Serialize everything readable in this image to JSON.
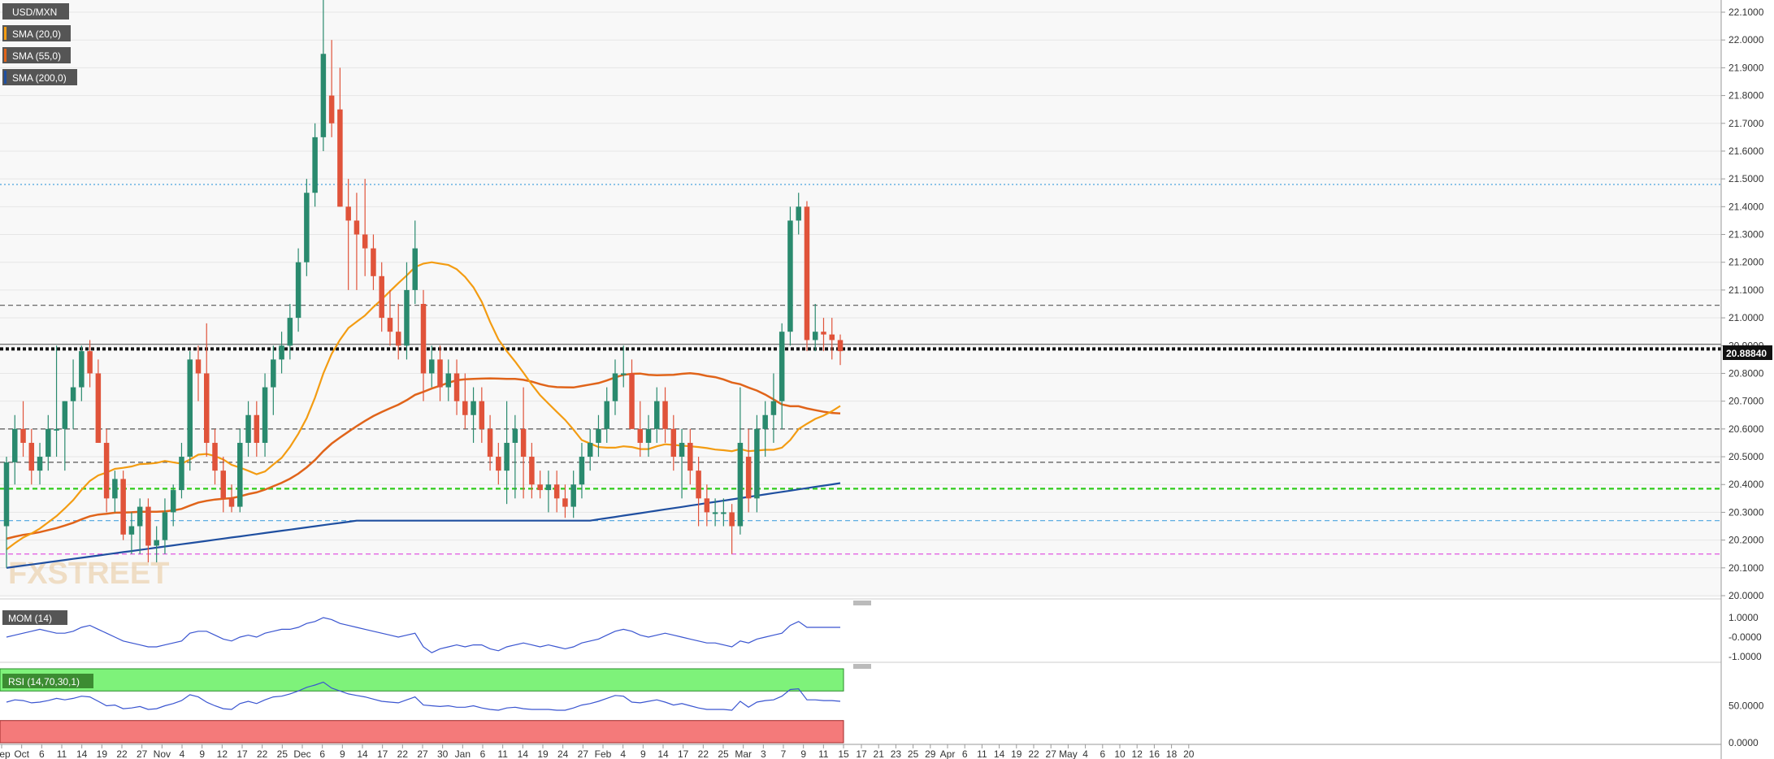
{
  "chart_data": {
    "type": "candlestick",
    "title": "USD/MXN",
    "indicators": [
      "SMA (20,0)",
      "SMA (55,0)",
      "SMA (200,0)"
    ],
    "last_price": "20.88840",
    "watermark": "FXSTREET",
    "y_range": [
      20.0,
      22.15
    ],
    "y_ticks": [
      "22.1000",
      "22.0000",
      "21.9000",
      "21.8000",
      "21.7000",
      "21.6000",
      "21.5000",
      "21.4000",
      "21.3000",
      "21.2000",
      "21.1000",
      "21.0000",
      "20.9000",
      "20.8000",
      "20.7000",
      "20.6000",
      "20.5000",
      "20.4000",
      "20.3000",
      "20.2000",
      "20.1000",
      "20.0000"
    ],
    "x_labels": [
      "Sep",
      "Oct",
      "6",
      "11",
      "14",
      "19",
      "22",
      "27",
      "Nov",
      "4",
      "9",
      "12",
      "17",
      "22",
      "25",
      "Dec",
      "6",
      "9",
      "14",
      "17",
      "22",
      "27",
      "30",
      "Jan",
      "6",
      "11",
      "14",
      "19",
      "24",
      "27",
      "Feb",
      "4",
      "9",
      "14",
      "17",
      "22",
      "25",
      "Mar",
      "3",
      "7",
      "9",
      "11",
      "15",
      "17",
      "21",
      "23",
      "25",
      "29",
      "Apr",
      "6",
      "11",
      "14",
      "19",
      "22",
      "27",
      "May",
      "4",
      "6",
      "10",
      "12",
      "16",
      "18",
      "20"
    ],
    "horizontal_levels": [
      {
        "value": 21.48,
        "color": "#4aa3df",
        "style": "dotted"
      },
      {
        "value": 21.045,
        "color": "#555555",
        "style": "dashed"
      },
      {
        "value": 20.888,
        "color": "#111111",
        "style": "thick-dotted"
      },
      {
        "value": 20.6,
        "color": "#555555",
        "style": "dashed"
      },
      {
        "value": 20.48,
        "color": "#555555",
        "style": "dashed"
      },
      {
        "value": 20.385,
        "color": "#2ecc1a",
        "style": "dashed"
      },
      {
        "value": 20.27,
        "color": "#4aa3df",
        "style": "dashed"
      },
      {
        "value": 20.15,
        "color": "#e055e0",
        "style": "dashed"
      }
    ],
    "candles": [
      [
        20.25,
        20.5,
        20.1,
        20.48
      ],
      [
        20.48,
        20.65,
        20.4,
        20.6
      ],
      [
        20.6,
        20.7,
        20.5,
        20.55
      ],
      [
        20.55,
        20.6,
        20.4,
        20.45
      ],
      [
        20.45,
        20.55,
        20.4,
        20.5
      ],
      [
        20.5,
        20.65,
        20.45,
        20.6
      ],
      [
        20.6,
        20.9,
        20.5,
        20.6
      ],
      [
        20.6,
        20.7,
        20.45,
        20.7
      ],
      [
        20.7,
        20.85,
        20.6,
        20.75
      ],
      [
        20.75,
        20.9,
        20.7,
        20.88
      ],
      [
        20.88,
        20.92,
        20.75,
        20.8
      ],
      [
        20.8,
        20.85,
        20.55,
        20.55
      ],
      [
        20.55,
        20.6,
        20.3,
        20.35
      ],
      [
        20.35,
        20.45,
        20.3,
        20.42
      ],
      [
        20.42,
        20.45,
        20.2,
        20.22
      ],
      [
        20.22,
        20.3,
        20.15,
        20.25
      ],
      [
        20.25,
        20.35,
        20.15,
        20.32
      ],
      [
        20.32,
        20.35,
        20.12,
        20.18
      ],
      [
        20.18,
        20.25,
        20.12,
        20.2
      ],
      [
        20.2,
        20.35,
        20.15,
        20.3
      ],
      [
        20.3,
        20.4,
        20.25,
        20.38
      ],
      [
        20.38,
        20.55,
        20.35,
        20.5
      ],
      [
        20.5,
        20.88,
        20.45,
        20.85
      ],
      [
        20.85,
        20.9,
        20.7,
        20.8
      ],
      [
        20.8,
        20.98,
        20.5,
        20.55
      ],
      [
        20.55,
        20.6,
        20.4,
        20.45
      ],
      [
        20.45,
        20.5,
        20.3,
        20.35
      ],
      [
        20.35,
        20.4,
        20.3,
        20.32
      ],
      [
        20.32,
        20.6,
        20.3,
        20.55
      ],
      [
        20.55,
        20.7,
        20.5,
        20.65
      ],
      [
        20.65,
        20.7,
        20.5,
        20.55
      ],
      [
        20.55,
        20.8,
        20.5,
        20.75
      ],
      [
        20.75,
        20.9,
        20.65,
        20.85
      ],
      [
        20.85,
        20.95,
        20.8,
        20.9
      ],
      [
        20.9,
        21.05,
        20.85,
        21.0
      ],
      [
        21.0,
        21.25,
        20.95,
        21.2
      ],
      [
        21.2,
        21.5,
        21.15,
        21.45
      ],
      [
        21.45,
        21.7,
        21.4,
        21.65
      ],
      [
        21.65,
        22.15,
        21.6,
        21.95
      ],
      [
        21.8,
        22.0,
        21.65,
        21.7
      ],
      [
        21.75,
        21.9,
        21.4,
        21.4
      ],
      [
        21.4,
        21.5,
        21.1,
        21.35
      ],
      [
        21.35,
        21.45,
        21.1,
        21.3
      ],
      [
        21.3,
        21.5,
        21.15,
        21.25
      ],
      [
        21.25,
        21.3,
        21.1,
        21.15
      ],
      [
        21.15,
        21.2,
        20.95,
        21.0
      ],
      [
        21.0,
        21.1,
        20.9,
        20.95
      ],
      [
        20.95,
        21.05,
        20.85,
        20.9
      ],
      [
        20.9,
        21.2,
        20.85,
        21.1
      ],
      [
        21.1,
        21.35,
        21.05,
        21.25
      ],
      [
        21.05,
        21.1,
        20.7,
        20.8
      ],
      [
        20.8,
        20.9,
        20.75,
        20.85
      ],
      [
        20.85,
        20.9,
        20.7,
        20.75
      ],
      [
        20.75,
        20.85,
        20.7,
        20.8
      ],
      [
        20.8,
        20.85,
        20.65,
        20.7
      ],
      [
        20.7,
        20.8,
        20.6,
        20.65
      ],
      [
        20.65,
        20.75,
        20.55,
        20.7
      ],
      [
        20.7,
        20.75,
        20.55,
        20.6
      ],
      [
        20.6,
        20.65,
        20.45,
        20.5
      ],
      [
        20.5,
        20.55,
        20.4,
        20.45
      ],
      [
        20.45,
        20.7,
        20.33,
        20.55
      ],
      [
        20.55,
        20.65,
        20.35,
        20.6
      ],
      [
        20.6,
        20.75,
        20.35,
        20.5
      ],
      [
        20.5,
        20.55,
        20.35,
        20.4
      ],
      [
        20.4,
        20.45,
        20.35,
        20.38
      ],
      [
        20.38,
        20.45,
        20.3,
        20.4
      ],
      [
        20.4,
        20.45,
        20.3,
        20.35
      ],
      [
        20.35,
        20.4,
        20.28,
        20.32
      ],
      [
        20.32,
        20.45,
        20.28,
        20.4
      ],
      [
        20.4,
        20.55,
        20.35,
        20.5
      ],
      [
        20.5,
        20.6,
        20.45,
        20.55
      ],
      [
        20.55,
        20.65,
        20.5,
        20.6
      ],
      [
        20.6,
        20.75,
        20.55,
        20.7
      ],
      [
        20.7,
        20.85,
        20.65,
        20.8
      ],
      [
        20.8,
        20.9,
        20.75,
        20.8
      ],
      [
        20.8,
        20.85,
        20.6,
        20.6
      ],
      [
        20.6,
        20.7,
        20.5,
        20.55
      ],
      [
        20.55,
        20.65,
        20.5,
        20.6
      ],
      [
        20.6,
        20.75,
        20.55,
        20.7
      ],
      [
        20.7,
        20.75,
        20.55,
        20.6
      ],
      [
        20.6,
        20.65,
        20.45,
        20.5
      ],
      [
        20.5,
        20.6,
        20.35,
        20.55
      ],
      [
        20.55,
        20.6,
        20.4,
        20.45
      ],
      [
        20.45,
        20.5,
        20.25,
        20.35
      ],
      [
        20.35,
        20.4,
        20.25,
        20.3
      ],
      [
        20.3,
        20.35,
        20.25,
        20.3
      ],
      [
        20.3,
        20.35,
        20.25,
        20.3
      ],
      [
        20.3,
        20.33,
        20.15,
        20.25
      ],
      [
        20.25,
        20.75,
        20.22,
        20.55
      ],
      [
        20.5,
        20.6,
        20.3,
        20.35
      ],
      [
        20.35,
        20.65,
        20.3,
        20.6
      ],
      [
        20.6,
        20.7,
        20.5,
        20.65
      ],
      [
        20.65,
        20.8,
        20.55,
        20.7
      ],
      [
        20.7,
        20.98,
        20.6,
        20.95
      ],
      [
        20.95,
        21.4,
        20.9,
        21.35
      ],
      [
        21.35,
        21.45,
        21.3,
        21.4
      ],
      [
        21.4,
        21.42,
        20.88,
        20.92
      ],
      [
        20.92,
        21.05,
        20.88,
        20.95
      ],
      [
        20.95,
        21.0,
        20.88,
        20.94
      ],
      [
        20.94,
        21.0,
        20.85,
        20.92
      ],
      [
        20.92,
        20.94,
        20.83,
        20.88
      ]
    ],
    "mom_series": [
      0.0,
      0.1,
      0.2,
      0.3,
      0.4,
      0.3,
      0.2,
      0.2,
      0.3,
      0.5,
      0.6,
      0.4,
      0.2,
      0.0,
      -0.2,
      -0.3,
      -0.4,
      -0.5,
      -0.5,
      -0.4,
      -0.3,
      -0.2,
      0.2,
      0.3,
      0.3,
      0.1,
      -0.1,
      -0.2,
      0.0,
      0.1,
      0.0,
      0.2,
      0.3,
      0.4,
      0.4,
      0.5,
      0.7,
      0.8,
      1.0,
      0.9,
      0.7,
      0.6,
      0.5,
      0.4,
      0.3,
      0.2,
      0.1,
      0.0,
      0.1,
      0.2,
      -0.5,
      -0.8,
      -0.6,
      -0.5,
      -0.4,
      -0.5,
      -0.4,
      -0.4,
      -0.6,
      -0.7,
      -0.5,
      -0.4,
      -0.3,
      -0.4,
      -0.5,
      -0.4,
      -0.5,
      -0.6,
      -0.5,
      -0.3,
      -0.2,
      -0.1,
      0.1,
      0.3,
      0.4,
      0.3,
      0.1,
      0.0,
      0.1,
      0.2,
      0.1,
      0.0,
      -0.1,
      -0.2,
      -0.3,
      -0.3,
      -0.4,
      -0.5,
      -0.2,
      -0.3,
      -0.1,
      0.0,
      0.1,
      0.2,
      0.6,
      0.8,
      0.5,
      0.5,
      0.5,
      0.5,
      0.5
    ],
    "mom_ticks": [
      "1.0000",
      "-0.0000",
      "-1.0000"
    ],
    "rsi_label": "RSI (14,70,30,1)",
    "rsi_series": [
      55,
      58,
      57,
      54,
      55,
      57,
      60,
      58,
      60,
      63,
      62,
      56,
      50,
      51,
      46,
      47,
      49,
      45,
      46,
      50,
      53,
      57,
      65,
      62,
      55,
      50,
      46,
      45,
      53,
      56,
      53,
      58,
      62,
      63,
      66,
      70,
      75,
      78,
      82,
      74,
      70,
      66,
      64,
      62,
      59,
      56,
      55,
      54,
      58,
      62,
      51,
      50,
      49,
      50,
      48,
      48,
      50,
      47,
      45,
      44,
      47,
      48,
      46,
      45,
      45,
      45,
      44,
      44,
      47,
      51,
      53,
      56,
      60,
      64,
      63,
      55,
      54,
      56,
      58,
      55,
      51,
      53,
      50,
      47,
      45,
      45,
      45,
      44,
      56,
      48,
      55,
      57,
      58,
      63,
      72,
      73,
      58,
      58,
      57,
      57,
      56
    ],
    "rsi_ticks": [
      "50.0000",
      "0.0000"
    ]
  }
}
